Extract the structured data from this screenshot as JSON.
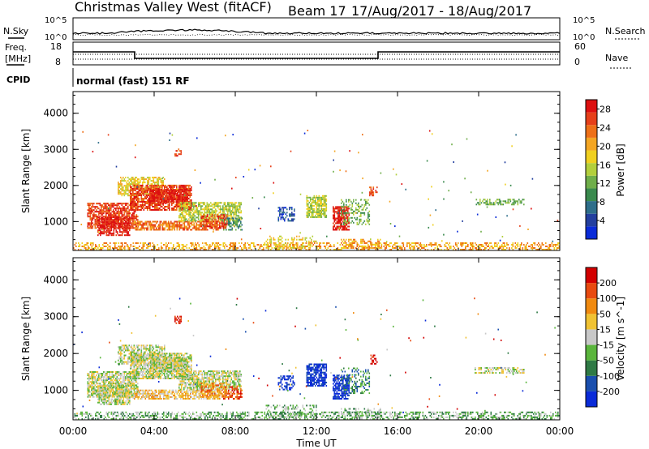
{
  "header": {
    "station": "Christmas Valley West (fitACF)",
    "beam": "Beam 17",
    "date_range": "17/Aug/2017 - 18/Aug/2017"
  },
  "strip": {
    "nsky_label": "N.Sky",
    "nsearch_label": "N.Search",
    "nsky_ticks": [
      "10^5",
      "10^0"
    ],
    "nsearch_ticks": [
      "10^5",
      "10^0"
    ],
    "freq_label_1": "Freq.",
    "freq_label_2": "[MHz]",
    "freq_ticks": [
      "18",
      "8"
    ],
    "nave_label": "Nave",
    "nave_ticks": [
      "60",
      "0"
    ],
    "cpid_label": "CPID",
    "cpid_value": "normal (fast) 151 RF"
  },
  "chart_data": [
    {
      "type": "heatmap",
      "name": "power",
      "ylabel": "Slant Range [km]",
      "yticks": [
        1000,
        2000,
        3000,
        4000
      ],
      "ylim": [
        200,
        4600
      ],
      "colorbar_label": "Power [dB]",
      "colorbar_ticks": [
        "4",
        "8",
        "12",
        "16",
        "20",
        "24",
        "28"
      ],
      "colors": [
        "#0a2bd8",
        "#233f9e",
        "#2e6e8a",
        "#3a8a4e",
        "#6fae4a",
        "#b3cf3c",
        "#f0d020",
        "#f4a623",
        "#ee7018",
        "#e6401a",
        "#dd1010"
      ]
    },
    {
      "type": "heatmap",
      "name": "velocity",
      "ylabel": "Slant Range [km]",
      "yticks": [
        1000,
        2000,
        3000,
        4000
      ],
      "ylim": [
        200,
        4600
      ],
      "colorbar_label": "Velocity [m s^-1]",
      "colorbar_ticks": [
        "200",
        "100",
        "50",
        "15",
        "-15",
        "-50",
        "-100",
        "-200"
      ],
      "colors": [
        "#0a2bd8",
        "#1a4fae",
        "#2f7a45",
        "#5ab53c",
        "#c8c8c8",
        "#f0c232",
        "#f08a10",
        "#e84a10",
        "#d20000"
      ]
    }
  ],
  "xaxis": {
    "label": "Time UT",
    "ticks": [
      "00:00",
      "04:00",
      "08:00",
      "12:00",
      "16:00",
      "20:00",
      "00:00"
    ]
  }
}
